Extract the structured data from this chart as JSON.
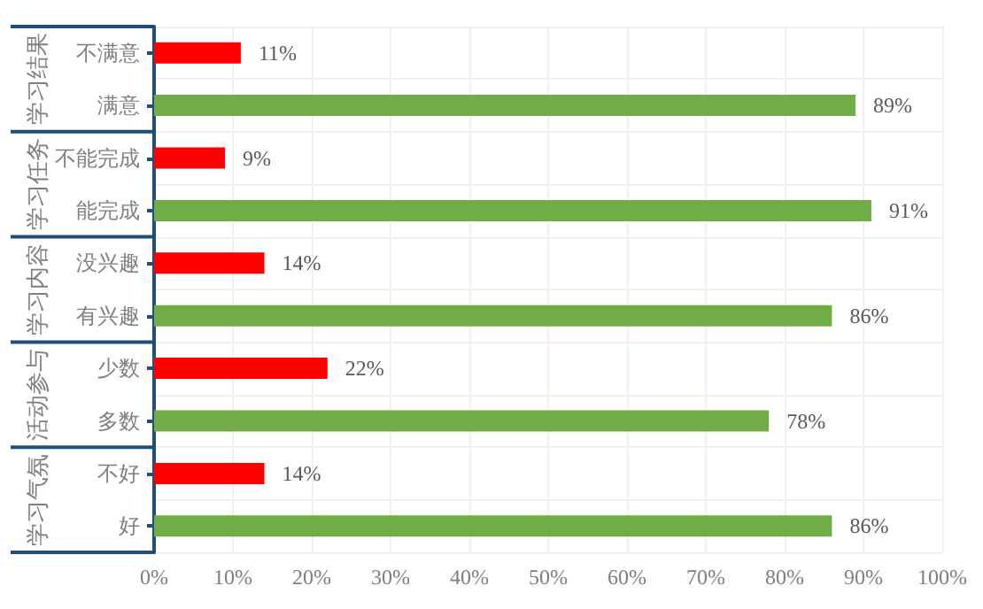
{
  "chart_data": {
    "type": "bar",
    "orientation": "horizontal",
    "categories": [
      "不满意",
      "满意",
      "不能完成",
      "能完成",
      "没兴趣",
      "有兴趣",
      "少数",
      "多数",
      "不好",
      "好"
    ],
    "values": [
      11,
      89,
      9,
      91,
      14,
      86,
      22,
      78,
      14,
      86
    ],
    "colors": [
      "#ff0000",
      "#70ad47",
      "#ff0000",
      "#70ad47",
      "#ff0000",
      "#70ad47",
      "#ff0000",
      "#70ad47",
      "#ff0000",
      "#70ad47"
    ],
    "value_labels": [
      "11%",
      "89%",
      "9%",
      "91%",
      "14%",
      "86%",
      "22%",
      "78%",
      "14%",
      "86%"
    ],
    "xlim": [
      0,
      100
    ],
    "xticks": [
      {
        "value": 0,
        "label": "0%"
      },
      {
        "value": 10,
        "label": "10%"
      },
      {
        "value": 20,
        "label": "20%"
      },
      {
        "value": 30,
        "label": "30%"
      },
      {
        "value": 40,
        "label": "40%"
      },
      {
        "value": 50,
        "label": "50%"
      },
      {
        "value": 60,
        "label": "60%"
      },
      {
        "value": 70,
        "label": "70%"
      },
      {
        "value": 80,
        "label": "80%"
      },
      {
        "value": 90,
        "label": "90%"
      },
      {
        "value": 100,
        "label": "100%"
      }
    ],
    "annotations": [
      "学习结果",
      "学习任务",
      "学习内容",
      "活动参与",
      "学习气氛"
    ],
    "grid": true
  }
}
